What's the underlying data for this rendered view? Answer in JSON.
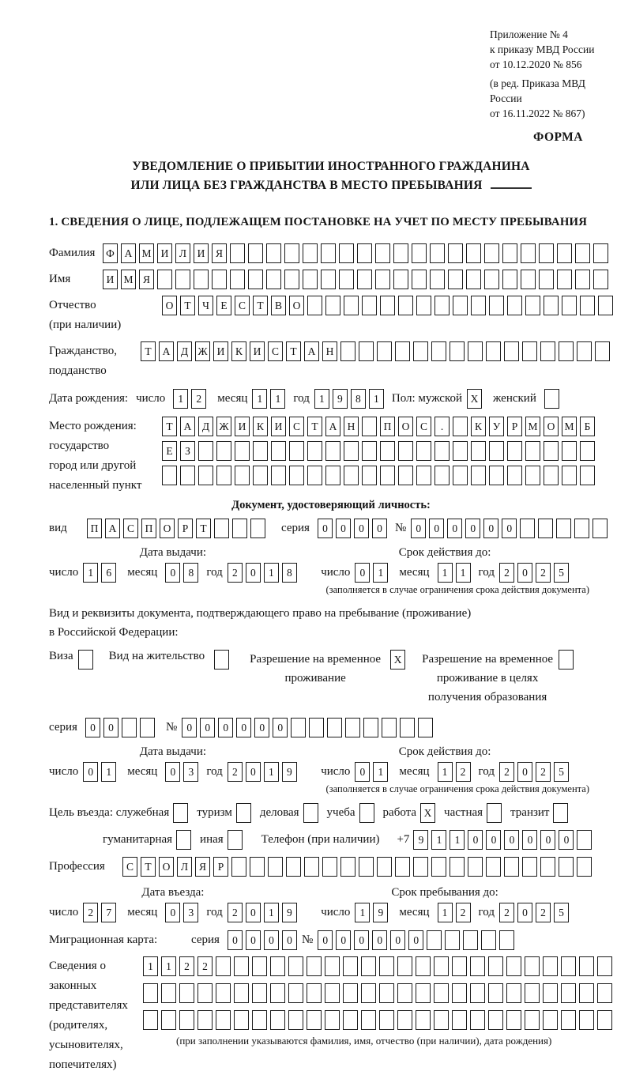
{
  "header": {
    "ref": [
      "Приложение № 4",
      "к приказу МВД России",
      "от 10.12.2020 № 856"
    ],
    "ref2": [
      "(в ред. Приказа МВД России",
      "от 16.11.2022 № 867)"
    ],
    "form": "ФОРМА"
  },
  "title": {
    "line1": "УВЕДОМЛЕНИЕ О ПРИБЫТИИ ИНОСТРАННОГО ГРАЖДАНИНА",
    "line2": "ИЛИ ЛИЦА БЕЗ ГРАЖДАНСТВА В МЕСТО ПРЕБЫВАНИЯ"
  },
  "section1": {
    "heading": "1. СВЕДЕНИЯ О ЛИЦЕ, ПОДЛЕЖАЩЕМ ПОСТАНОВКЕ НА УЧЕТ ПО МЕСТУ ПРЕБЫВАНИЯ"
  },
  "labels": {
    "surname": "Фамилия",
    "name": "Имя",
    "patronymic1": "Отчество",
    "patronymic2": "(при наличии)",
    "citizenship1": "Гражданство,",
    "citizenship2": "подданство",
    "birth_date": "Дата рождения:",
    "day": "число",
    "month": "месяц",
    "year": "год",
    "sex_male": "Пол: мужской",
    "sex_female": "женский",
    "birthplace1": "Место рождения:",
    "birthplace2": "государство",
    "birthplace3": "город или другой",
    "birthplace4": "населенный пункт",
    "id_doc_heading": "Документ, удостоверяющий личность:",
    "doc_type": "вид",
    "series": "серия",
    "number": "№",
    "issue_date": "Дата выдачи:",
    "valid_until": "Срок действия до:",
    "valid_note": "(заполняется в случае ограничения срока действия документа)",
    "permit_line1": "Вид и реквизиты документа, подтверждающего право на пребывание (проживание)",
    "permit_line2": "в Российской Федерации:",
    "visa": "Виза",
    "residence_permit": "Вид на жительство",
    "temp_residence": "Разрешение на временное проживание",
    "temp_residence_edu": "Разрешение на временное проживание в целях получения образования",
    "purpose_intro": "Цель въезда: служебная",
    "tourism": "туризм",
    "business": "деловая",
    "study": "учеба",
    "work": "работа",
    "private": "частная",
    "transit": "транзит",
    "humanitarian": "гуманитарная",
    "other": "иная",
    "phone": "Телефон (при наличии)",
    "phone_prefix": "+7",
    "profession": "Профессия",
    "entry_date": "Дата въезда:",
    "stay_until": "Срок пребывания до:",
    "migration_card": "Миграционная карта:",
    "reps1": "Сведения о",
    "reps2": "законных",
    "reps3": "представителях",
    "reps4": "(родителях,",
    "reps5": "усыновителях,",
    "reps6": "попечителях)",
    "reps_note": "(при заполнении указываются фамилия, имя, отчество (при наличии), дата рождения)"
  },
  "cells": {
    "surname": {
      "t": "ФАМИЛИЯ",
      "n": 28
    },
    "name": {
      "t": "ИМЯ",
      "n": 28
    },
    "patronymic": {
      "t": "ОТЧЕСТВО",
      "n": 25
    },
    "citizenship": {
      "t": "ТАДЖИКИСТАН",
      "n": 26
    },
    "birth_day": {
      "t": "12",
      "n": 2
    },
    "birth_month": {
      "t": "11",
      "n": 2
    },
    "birth_year": {
      "t": "1981",
      "n": 4
    },
    "sex_male": {
      "t": "X",
      "n": 1
    },
    "sex_female": {
      "t": "",
      "n": 1
    },
    "birthplace_row1": {
      "t": "ТАДЖИКИСТАН ПОС. КУРМОМБ",
      "n": 24
    },
    "birthplace_row2": {
      "t": "ЕЗ",
      "n": 24
    },
    "birthplace_row3": {
      "t": "",
      "n": 24
    },
    "id_doc_type": {
      "t": "ПАСПОРТ",
      "n": 10
    },
    "id_doc_series": {
      "t": "0000",
      "n": 4
    },
    "id_doc_number": {
      "t": "000000",
      "n": 11
    },
    "id_issue_day": {
      "t": "16",
      "n": 2
    },
    "id_issue_month": {
      "t": "08",
      "n": 2
    },
    "id_issue_year": {
      "t": "2018",
      "n": 4
    },
    "id_expiry_day": {
      "t": "01",
      "n": 2
    },
    "id_expiry_month": {
      "t": "11",
      "n": 2
    },
    "id_expiry_year": {
      "t": "2025",
      "n": 4
    },
    "visa_box": {
      "t": "",
      "n": 1
    },
    "residence_permit_box": {
      "t": "",
      "n": 1
    },
    "temp_residence_box": {
      "t": "X",
      "n": 1
    },
    "temp_residence_edu_box": {
      "t": "",
      "n": 1
    },
    "permit_series": {
      "t": "00",
      "n": 4
    },
    "permit_number": {
      "t": "000000",
      "n": 14
    },
    "permit_issue_day": {
      "t": "01",
      "n": 2
    },
    "permit_issue_month": {
      "t": "03",
      "n": 2
    },
    "permit_issue_year": {
      "t": "2019",
      "n": 4
    },
    "permit_expiry_day": {
      "t": "01",
      "n": 2
    },
    "permit_expiry_month": {
      "t": "12",
      "n": 2
    },
    "permit_expiry_year": {
      "t": "2025",
      "n": 4
    },
    "purpose_official": {
      "t": "",
      "n": 1
    },
    "purpose_tourism": {
      "t": "",
      "n": 1
    },
    "purpose_business": {
      "t": "",
      "n": 1
    },
    "purpose_study": {
      "t": "",
      "n": 1
    },
    "purpose_work": {
      "t": "X",
      "n": 1
    },
    "purpose_private": {
      "t": "",
      "n": 1
    },
    "purpose_transit": {
      "t": "",
      "n": 1
    },
    "purpose_humanitarian": {
      "t": "",
      "n": 1
    },
    "purpose_other": {
      "t": "",
      "n": 1
    },
    "phone": {
      "t": "911000000",
      "n": 10
    },
    "profession": {
      "t": "СТОЛЯР",
      "n": 26
    },
    "entry_day": {
      "t": "27",
      "n": 2
    },
    "entry_month": {
      "t": "03",
      "n": 2
    },
    "entry_year": {
      "t": "2019",
      "n": 4
    },
    "stay_day": {
      "t": "19",
      "n": 2
    },
    "stay_month": {
      "t": "12",
      "n": 2
    },
    "stay_year": {
      "t": "2025",
      "n": 4
    },
    "migration_series": {
      "t": "0000",
      "n": 4
    },
    "migration_number": {
      "t": "000000",
      "n": 11
    },
    "rep_row1": {
      "t": "1122",
      "n": 26
    },
    "rep_row2": {
      "t": "",
      "n": 26
    },
    "rep_row3": {
      "t": "",
      "n": 26
    }
  }
}
